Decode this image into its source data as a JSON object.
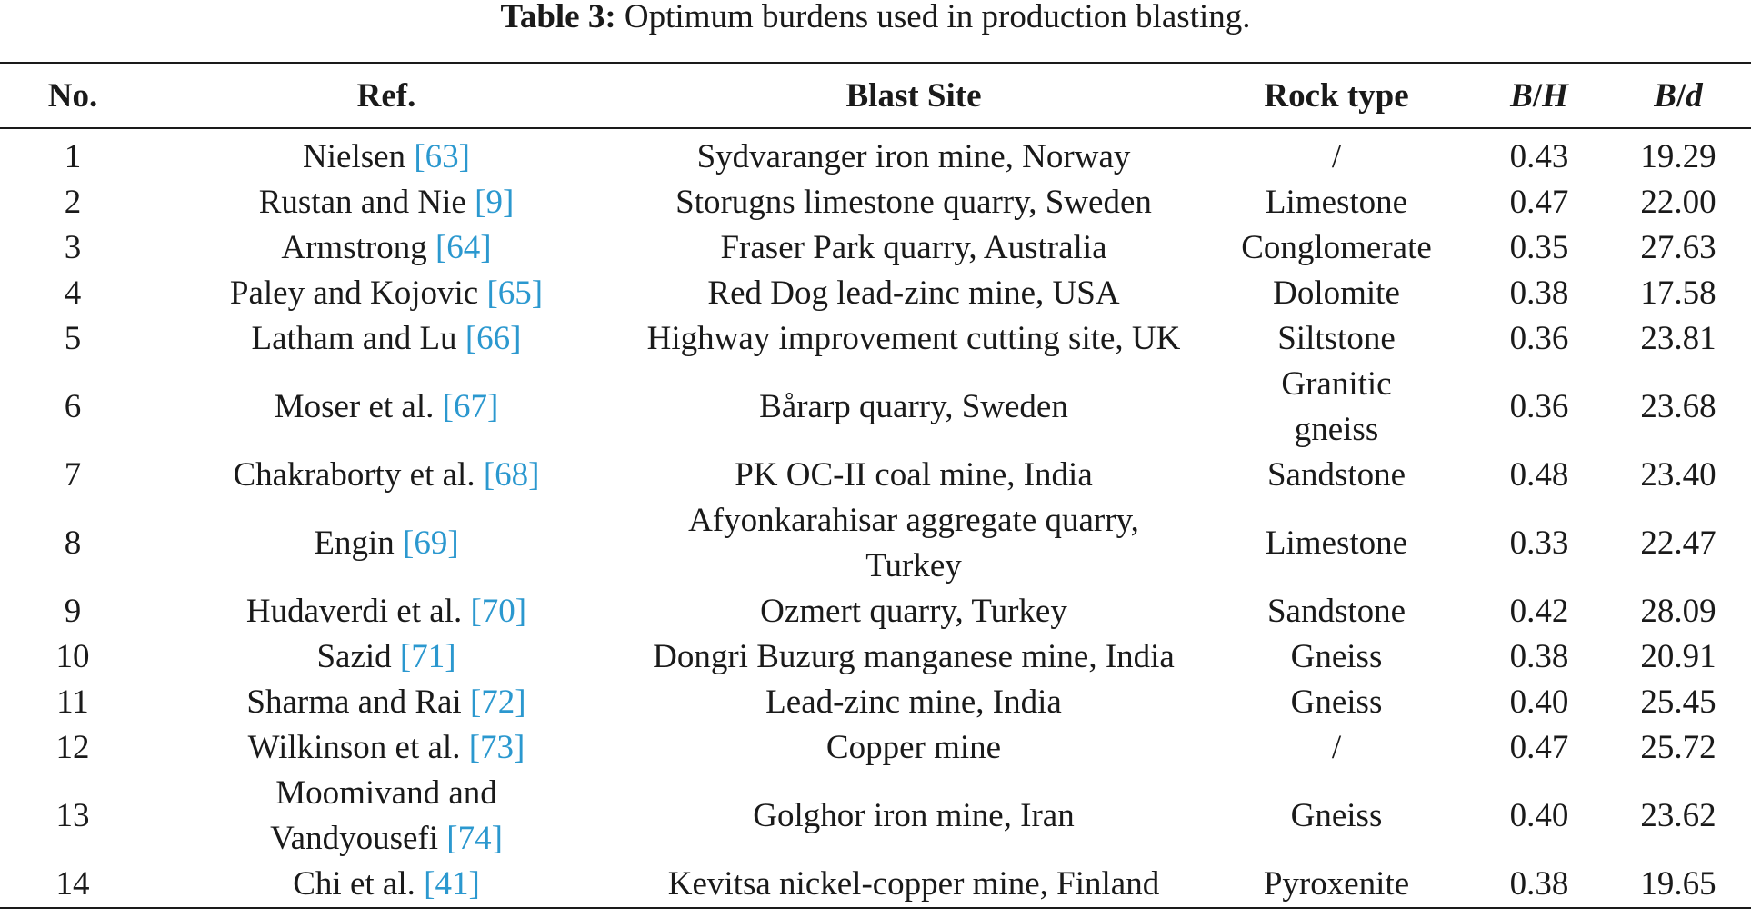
{
  "caption": {
    "label": "Table 3:",
    "text": "Optimum burdens used in production blasting."
  },
  "headers": {
    "no": "No.",
    "ref": "Ref.",
    "site": "Blast Site",
    "rock": "Rock type",
    "bh_b": "B",
    "bh_slash": "/",
    "bh_h": "H",
    "bd_b": "B",
    "bd_slash": "/",
    "bd_d": "d"
  },
  "colors": {
    "citation": "#2b98cf",
    "text": "#1a1a1a"
  },
  "rows": [
    {
      "no": "1",
      "ref_name": "Nielsen",
      "ref_num": "63",
      "site": "Sydvaranger iron mine, Norway",
      "rock": "/",
      "bh": "0.43",
      "bd": "19.29"
    },
    {
      "no": "2",
      "ref_name": "Rustan and Nie",
      "ref_num": "9",
      "site": "Storugns limestone quarry, Sweden",
      "rock": "Limestone",
      "bh": "0.47",
      "bd": "22.00"
    },
    {
      "no": "3",
      "ref_name": "Armstrong",
      "ref_num": "64",
      "site": "Fraser Park quarry, Australia",
      "rock": "Conglomerate",
      "bh": "0.35",
      "bd": "27.63"
    },
    {
      "no": "4",
      "ref_name": "Paley and Kojovic",
      "ref_num": "65",
      "site": "Red Dog lead-zinc mine, USA",
      "rock": "Dolomite",
      "bh": "0.38",
      "bd": "17.58"
    },
    {
      "no": "5",
      "ref_name": "Latham and Lu",
      "ref_num": "66",
      "site": "Highway improvement cutting site, UK",
      "rock": "Siltstone",
      "bh": "0.36",
      "bd": "23.81"
    },
    {
      "no": "6",
      "ref_name": "Moser et al.",
      "ref_num": "67",
      "site": "Bårarp quarry, Sweden",
      "rock_line1": "Granitic",
      "rock_line2": "gneiss",
      "bh": "0.36",
      "bd": "23.68"
    },
    {
      "no": "7",
      "ref_name": "Chakraborty et al.",
      "ref_num": "68",
      "site": "PK OC-II coal mine, India",
      "rock": "Sandstone",
      "bh": "0.48",
      "bd": "23.40"
    },
    {
      "no": "8",
      "ref_name": "Engin",
      "ref_num": "69",
      "site_line1": "Afyonkarahisar aggregate quarry,",
      "site_line2": "Turkey",
      "rock": "Limestone",
      "bh": "0.33",
      "bd": "22.47"
    },
    {
      "no": "9",
      "ref_name": "Hudaverdi et al.",
      "ref_num": "70",
      "site": "Ozmert quarry, Turkey",
      "rock": "Sandstone",
      "bh": "0.42",
      "bd": "28.09"
    },
    {
      "no": "10",
      "ref_name": "Sazid",
      "ref_num": "71",
      "site": "Dongri Buzurg manganese mine, India",
      "rock": "Gneiss",
      "bh": "0.38",
      "bd": "20.91"
    },
    {
      "no": "11",
      "ref_name": "Sharma and Rai",
      "ref_num": "72",
      "site": "Lead-zinc mine, India",
      "rock": "Gneiss",
      "bh": "0.40",
      "bd": "25.45"
    },
    {
      "no": "12",
      "ref_name": "Wilkinson et al.",
      "ref_num": "73",
      "site": "Copper mine",
      "rock": "/",
      "bh": "0.47",
      "bd": "25.72"
    },
    {
      "no": "13",
      "ref_line1": "Moomivand and",
      "ref_name": "Vandyousefi",
      "ref_num": "74",
      "site": "Golghor iron mine, Iran",
      "rock": "Gneiss",
      "bh": "0.40",
      "bd": "23.62"
    },
    {
      "no": "14",
      "ref_name": "Chi et al.",
      "ref_num": "41",
      "site": "Kevitsa nickel-copper mine, Finland",
      "rock": "Pyroxenite",
      "bh": "0.38",
      "bd": "19.65"
    }
  ]
}
